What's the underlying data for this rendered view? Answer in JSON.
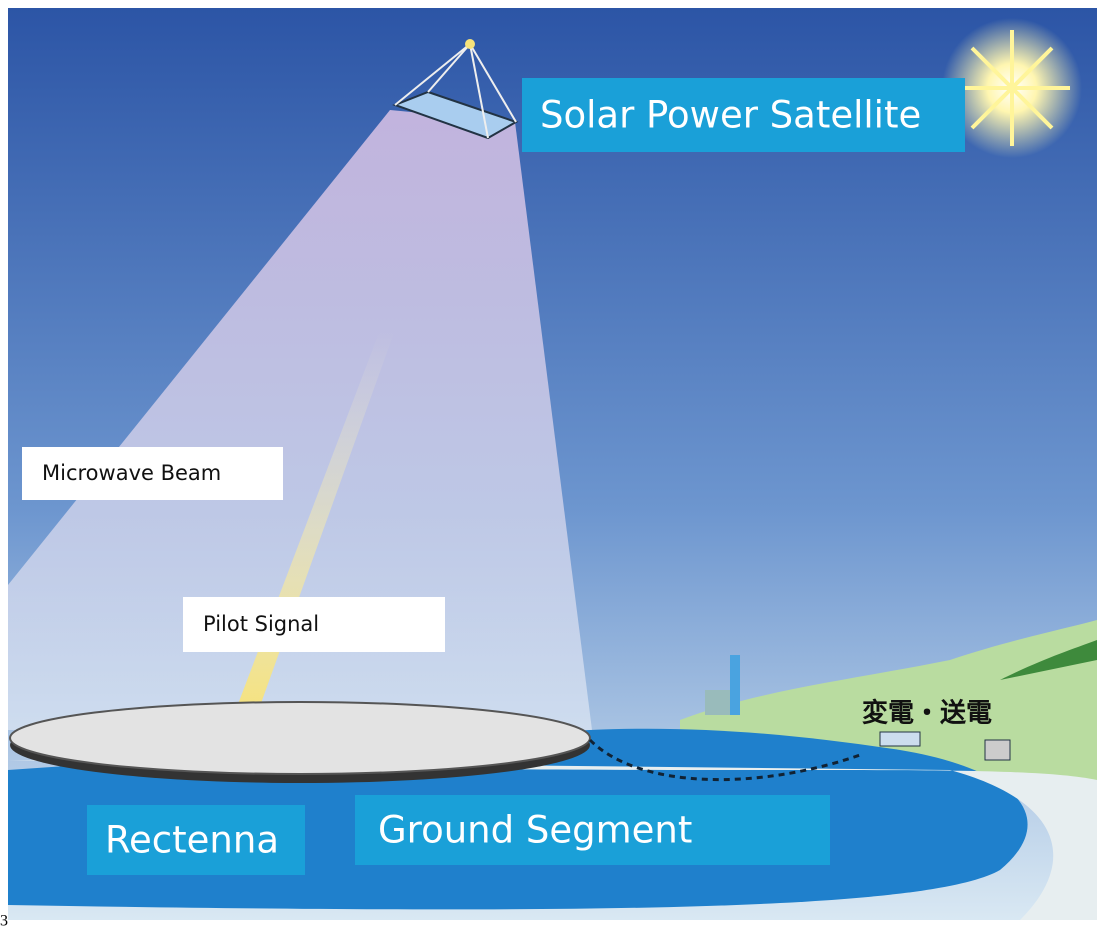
{
  "labels": {
    "satellite": "Solar Power Satellite",
    "beam": "Microwave Beam",
    "pilot": "Pilot Signal",
    "rectenna": "Rectenna",
    "ground": "Ground Segment",
    "substation": "変電・送電"
  },
  "figure_number": "3"
}
